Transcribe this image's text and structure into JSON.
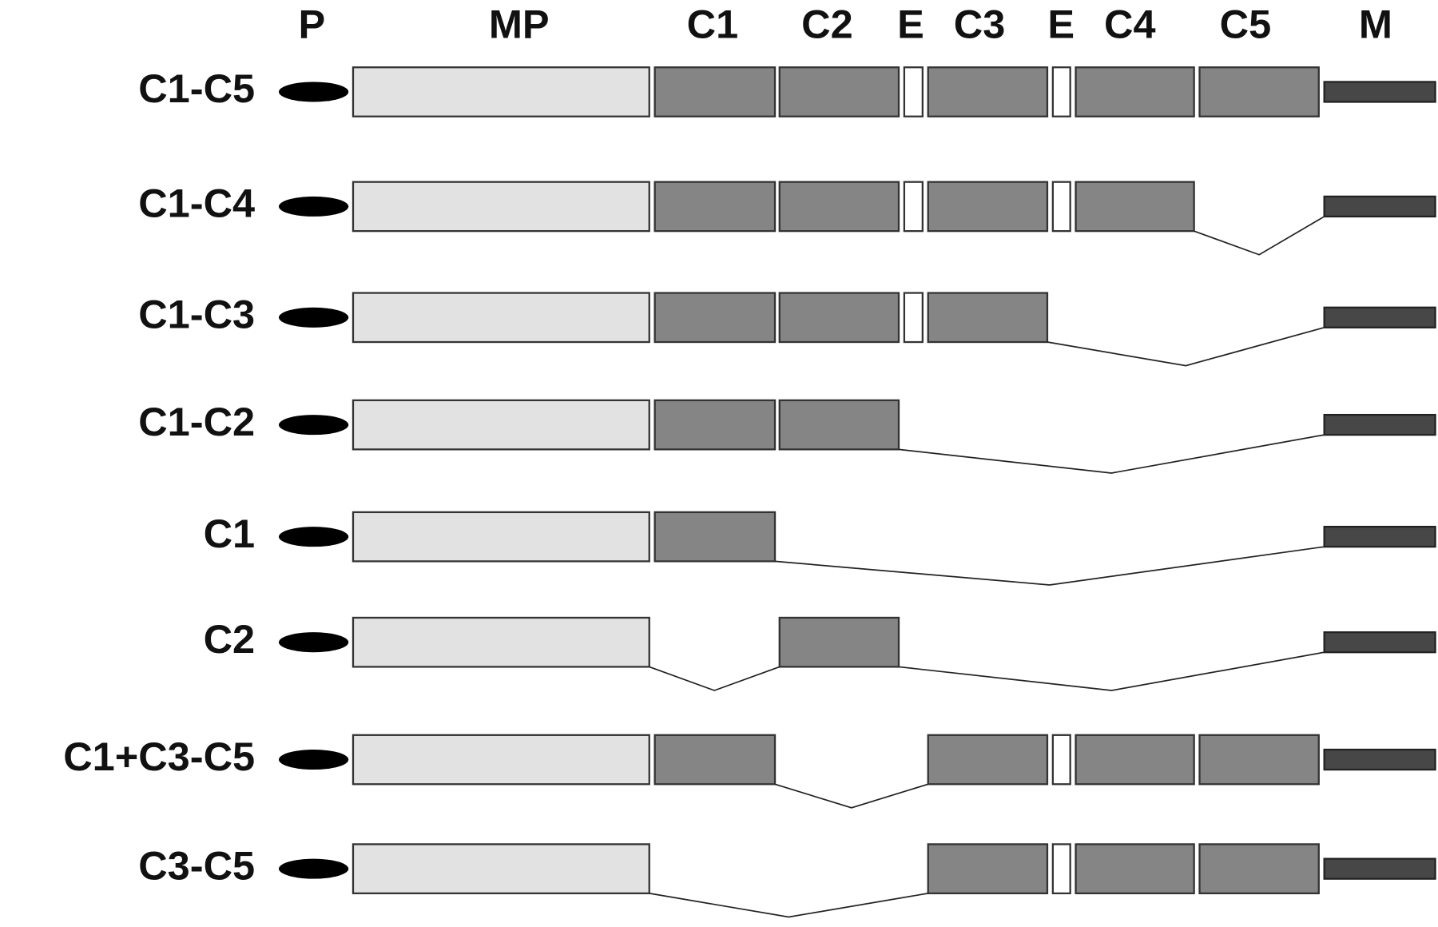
{
  "header": {
    "columns": [
      "P",
      "MP",
      "C1",
      "C2",
      "E",
      "C3",
      "E",
      "C4",
      "C5",
      "M"
    ]
  },
  "rows": [
    {
      "label": "C1-C5"
    },
    {
      "label": "C1-C4"
    },
    {
      "label": "C1-C3"
    },
    {
      "label": "C1-C2"
    },
    {
      "label": "C1"
    },
    {
      "label": "C2"
    },
    {
      "label": "C1+C3-C5"
    },
    {
      "label": "C3-C5"
    }
  ]
}
